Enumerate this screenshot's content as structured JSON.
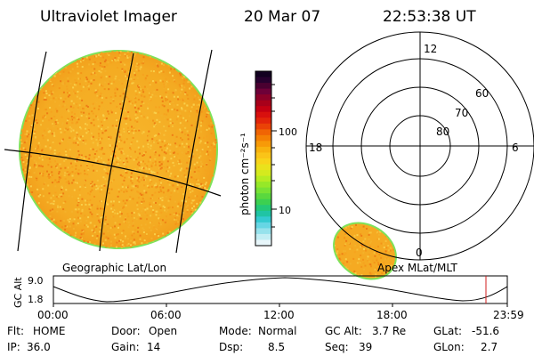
{
  "header": {
    "instrument": "Ultraviolet Imager",
    "date": "20 Mar 07",
    "time": "22:53:38 UT"
  },
  "colors": {
    "disk_fill": "#f5b227",
    "disk_rim": "#7ee25a",
    "grid_line": "#000000",
    "marker": "#d01c1c"
  },
  "colorbar": {
    "unit_label": "photon cm⁻²s⁻¹",
    "tick_labels": [
      "100",
      "10"
    ],
    "colors_top_to_bottom": [
      "#120020",
      "#26002e",
      "#4a0030",
      "#6e0038",
      "#8c0028",
      "#a8001a",
      "#c40012",
      "#d8100e",
      "#e2250a",
      "#ea4206",
      "#f06404",
      "#f48004",
      "#f79a08",
      "#f8b20e",
      "#fac418",
      "#f8d41a",
      "#eae21c",
      "#d4ea1e",
      "#b6ec22",
      "#96e828",
      "#78e234",
      "#5ad83e",
      "#3cd050",
      "#24c876",
      "#20c4a4",
      "#34cad0",
      "#66d6e4",
      "#96e2ec",
      "#c2eef4",
      "#e8f6fa"
    ]
  },
  "polar": {
    "lat_labels": [
      "80",
      "70",
      "60"
    ],
    "mlt_labels": {
      "top": "12",
      "left": "18",
      "right": "6",
      "bottom": "0"
    }
  },
  "captions": {
    "left": "Geographic Lat/Lon",
    "right": "Apex MLat/MLT"
  },
  "altitude_plot": {
    "y_label": "GC Alt",
    "y_ticks": [
      "9.0",
      "1.8"
    ],
    "x_ticks": [
      "00:00",
      "06:00",
      "12:00",
      "18:00",
      "23:59"
    ],
    "marker_time": "22:53"
  },
  "status": {
    "row1": [
      {
        "key": "Flt:",
        "value": "HOME"
      },
      {
        "key": "Door:",
        "value": "Open"
      },
      {
        "key": "Mode:",
        "value": "Normal"
      },
      {
        "key": "GC Alt:",
        "value": "3.7 Re"
      },
      {
        "key": "GLat:",
        "value": "-51.6"
      }
    ],
    "row2": [
      {
        "key": "IP:",
        "value": "36.0"
      },
      {
        "key": "Gain:",
        "value": "14"
      },
      {
        "key": "Dsp:",
        "value": "8.5"
      },
      {
        "key": "Seq:",
        "value": "39"
      },
      {
        "key": "GLon:",
        "value": "2.7"
      }
    ]
  }
}
